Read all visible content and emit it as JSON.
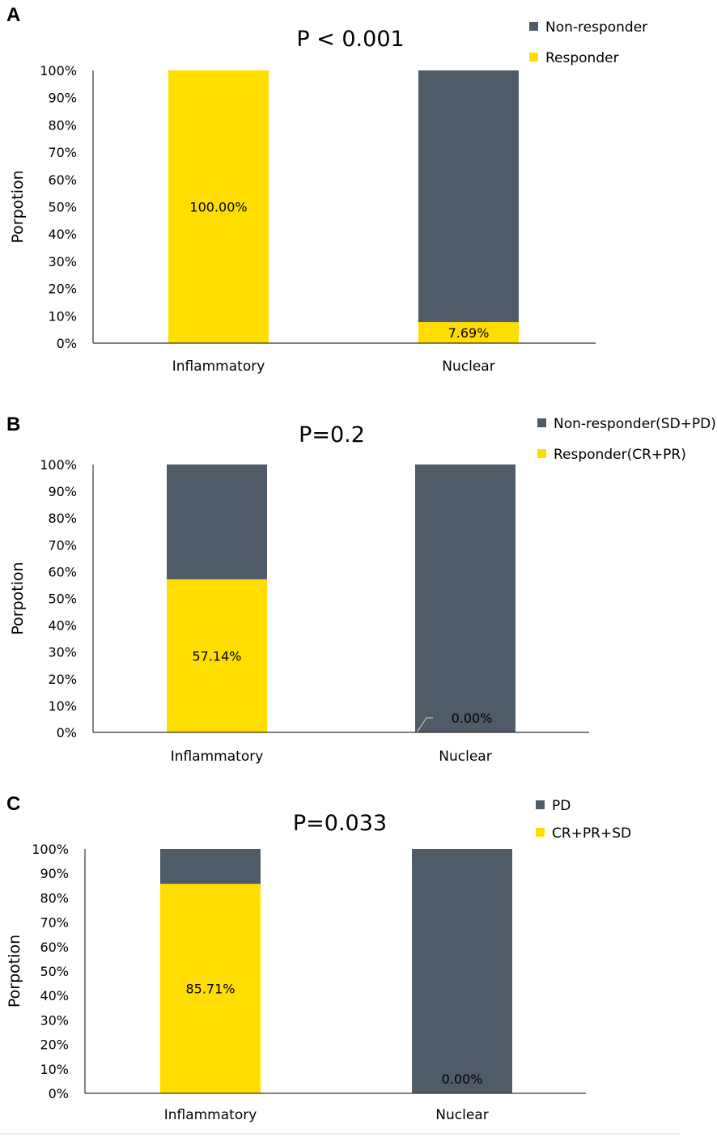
{
  "colors": {
    "non_responder": "#4f5b66",
    "responder": "#ffdd00"
  },
  "chart_data": [
    {
      "panel": "A",
      "type": "bar",
      "stacked": true,
      "title": "P < 0.001",
      "ylabel": "Porpotion",
      "xlabel": "",
      "ylim": [
        0,
        100
      ],
      "yticks": [
        "0%",
        "10%",
        "20%",
        "30%",
        "40%",
        "50%",
        "60%",
        "70%",
        "80%",
        "90%",
        "100%"
      ],
      "categories": [
        "Inflammatory",
        "Nuclear"
      ],
      "legend_position": "top-right",
      "series": [
        {
          "name": "Non-responder",
          "color_key": "non_responder",
          "values": [
            0,
            92.31
          ]
        },
        {
          "name": "Responder",
          "color_key": "responder",
          "values": [
            100,
            7.69
          ]
        }
      ],
      "data_labels": [
        "100.00%",
        "7.69%"
      ]
    },
    {
      "panel": "B",
      "type": "bar",
      "stacked": true,
      "title": "P=0.2",
      "ylabel": "Porpotion",
      "xlabel": "",
      "ylim": [
        0,
        100
      ],
      "yticks": [
        "0%",
        "10%",
        "20%",
        "30%",
        "40%",
        "50%",
        "60%",
        "70%",
        "80%",
        "90%",
        "100%"
      ],
      "categories": [
        "Inflammatory",
        "Nuclear"
      ],
      "legend_position": "top-right",
      "series": [
        {
          "name": "Non-responder(SD+PD)",
          "color_key": "non_responder",
          "values": [
            42.86,
            100
          ]
        },
        {
          "name": "Responder(CR+PR)",
          "color_key": "responder",
          "values": [
            57.14,
            0
          ]
        }
      ],
      "data_labels": [
        "57.14%",
        "0.00%"
      ]
    },
    {
      "panel": "C",
      "type": "bar",
      "stacked": true,
      "title": "P=0.033",
      "ylabel": "Porpotion",
      "xlabel": "",
      "ylim": [
        0,
        100
      ],
      "yticks": [
        "0%",
        "10%",
        "20%",
        "30%",
        "40%",
        "50%",
        "60%",
        "70%",
        "80%",
        "90%",
        "100%"
      ],
      "categories": [
        "Inflammatory",
        "Nuclear"
      ],
      "legend_position": "top-right",
      "series": [
        {
          "name": "PD",
          "color_key": "non_responder",
          "values": [
            14.29,
            100
          ]
        },
        {
          "name": "CR+PR+SD",
          "color_key": "responder",
          "values": [
            85.71,
            0
          ]
        }
      ],
      "data_labels": [
        "85.71%",
        "0.00%"
      ]
    }
  ]
}
